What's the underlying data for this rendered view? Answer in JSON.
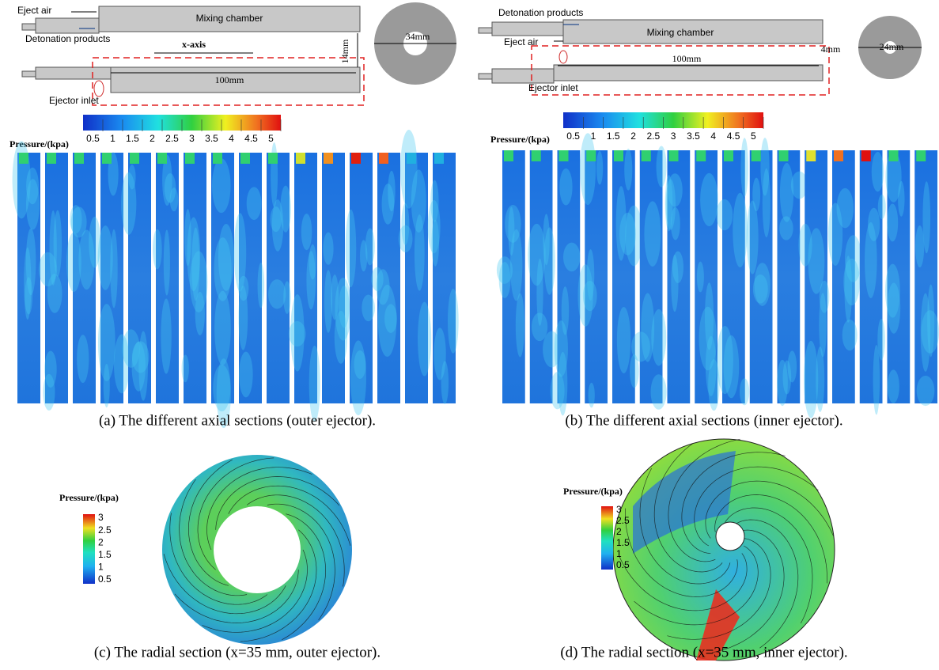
{
  "panels": [
    {
      "schematic": {
        "eject_air": "Eject air",
        "mixing_chamber": "Mixing chamber",
        "detonation_products": "Detonation products",
        "axis": "x-axis",
        "length": "100mm",
        "gap": "14mm",
        "ejector_inlet": "Ejector inlet",
        "diameter": "34mm"
      },
      "colorbar": {
        "title": "Pressure/(kpa)",
        "ticks": [
          0.5,
          1,
          1.5,
          2,
          2.5,
          3,
          3.5,
          4,
          4.5,
          5
        ]
      },
      "caption": "(a) The different axial sections (outer ejector)."
    },
    {
      "schematic": {
        "detonation_products": "Detonation products",
        "mixing_chamber": "Mixing chamber",
        "eject_air": "Eject air",
        "length": "100mm",
        "gap": "4mm",
        "ejector_inlet": "Ejector inlet",
        "diameter": "24mm"
      },
      "colorbar": {
        "title": "Pressure/(kpa)",
        "ticks": [
          0.5,
          1,
          1.5,
          2,
          2.5,
          3,
          3.5,
          4,
          4.5,
          5
        ]
      },
      "caption": "(b) The different axial sections (inner ejector)."
    },
    {
      "colorbar": {
        "title": "Pressure/(kpa)",
        "ticks": [
          3,
          2.5,
          2,
          1.5,
          1,
          0.5
        ]
      },
      "caption": "(c) The radial section (x=35 mm, outer ejector)."
    },
    {
      "colorbar": {
        "title": "Pressure/(kpa)",
        "ticks": [
          3,
          2.5,
          2,
          1.5,
          1,
          0.5
        ]
      },
      "caption": "(d) The radial section (x=35 mm, inner ejector)."
    }
  ]
}
